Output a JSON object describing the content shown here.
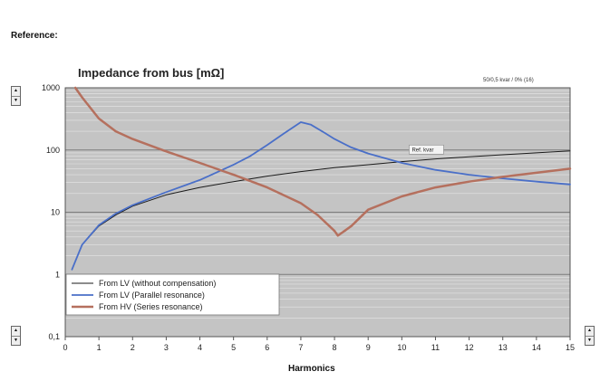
{
  "reference_label": "Reference:",
  "corner_note": "50/0,5 kvar / 0% (16)",
  "controls": {
    "up_glyph": "▲",
    "down_glyph": "▼"
  },
  "chart_data": {
    "type": "line",
    "title": "Impedance from bus [mΩ]",
    "xlabel": "Harmonics",
    "ylabel": "",
    "y_scale": "log",
    "xlim": [
      0,
      15
    ],
    "ylim": [
      0.1,
      1000
    ],
    "x_ticks": [
      0,
      1,
      2,
      3,
      4,
      5,
      6,
      7,
      8,
      9,
      10,
      11,
      12,
      13,
      14,
      15
    ],
    "y_ticks": [
      0.1,
      1,
      10,
      100,
      1000
    ],
    "y_tick_labels": [
      "0,1",
      "1",
      "10",
      "100",
      "1000"
    ],
    "grid": true,
    "legend_position": "bottom-left",
    "annotation": {
      "text": "Ref. kvar",
      "x": 10.3,
      "y": 95
    },
    "series": [
      {
        "name": "From LV (without compensation)",
        "color": "#1a1a1a",
        "x": [
          0.2,
          0.5,
          1,
          1.5,
          2,
          3,
          4,
          5,
          6,
          7,
          8,
          9,
          10,
          11,
          12,
          13,
          14,
          15
        ],
        "y": [
          1.2,
          3.0,
          6.0,
          9.0,
          12.5,
          19,
          25,
          31,
          38,
          45,
          52,
          58,
          65,
          72,
          78,
          84,
          90,
          97
        ]
      },
      {
        "name": "From LV (Parallel resonance)",
        "color": "#4a6fc8",
        "x": [
          0.2,
          0.5,
          1,
          1.5,
          2,
          3,
          4,
          5,
          5.5,
          6,
          6.5,
          7,
          7.3,
          7.7,
          8,
          8.5,
          9,
          10,
          11,
          12,
          13,
          14,
          15
        ],
        "y": [
          1.2,
          3.0,
          6.2,
          9.5,
          13,
          21,
          33,
          58,
          80,
          120,
          185,
          280,
          255,
          190,
          150,
          110,
          88,
          62,
          48,
          40,
          35,
          31,
          28
        ]
      },
      {
        "name": "From HV (Series resonance)",
        "color": "#b5705e",
        "x": [
          0.3,
          0.5,
          1,
          1.5,
          2,
          3,
          4,
          5,
          6,
          7,
          7.5,
          8,
          8.1,
          8.5,
          9,
          10,
          11,
          12,
          13,
          14,
          15
        ],
        "y": [
          1000,
          700,
          320,
          200,
          150,
          95,
          62,
          40,
          25,
          14,
          9,
          5,
          4.2,
          6,
          11,
          18,
          25,
          31,
          37,
          43,
          50
        ]
      }
    ]
  }
}
